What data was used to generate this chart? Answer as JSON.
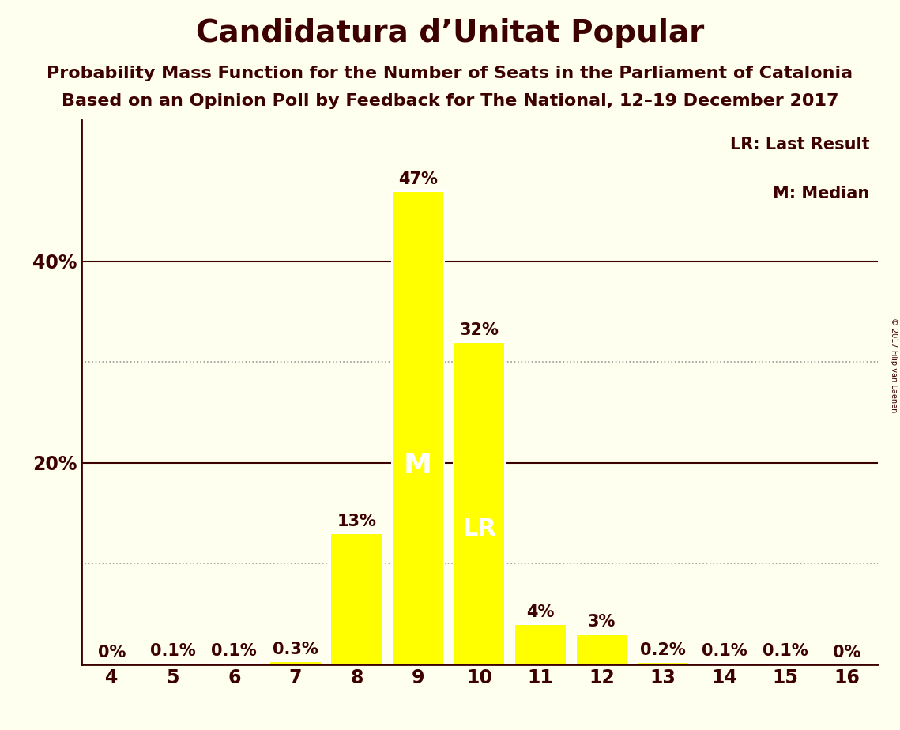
{
  "title": "Candidatura d’Unitat Popular",
  "subtitle1": "Probability Mass Function for the Number of Seats in the Parliament of Catalonia",
  "subtitle2": "Based on an Opinion Poll by Feedback for The National, 12–19 December 2017",
  "copyright": "© 2017 Filip van Laenen",
  "legend_lr": "LR: Last Result",
  "legend_m": "M: Median",
  "categories": [
    4,
    5,
    6,
    7,
    8,
    9,
    10,
    11,
    12,
    13,
    14,
    15,
    16
  ],
  "values": [
    0.0,
    0.1,
    0.1,
    0.3,
    13.0,
    47.0,
    32.0,
    4.0,
    3.0,
    0.2,
    0.1,
    0.1,
    0.0
  ],
  "bar_color": "#FFFF00",
  "bar_edge_color": "#FFFFFF",
  "median_seat": 9,
  "lr_seat": 10,
  "label_inside_threshold": 5.0,
  "bg_color": "#FFFFF0",
  "text_color": "#3d0000",
  "axis_color": "#3d0000",
  "grid_color": "#999999",
  "solid_yticks": [
    20,
    40
  ],
  "dotted_yticks": [
    10,
    30
  ],
  "labeled_yticks": [
    20,
    40
  ],
  "ylim": [
    0,
    54
  ],
  "title_fontsize": 28,
  "subtitle_fontsize": 16,
  "label_fontsize": 15,
  "tick_fontsize": 17,
  "inside_label_fontsize": 26
}
